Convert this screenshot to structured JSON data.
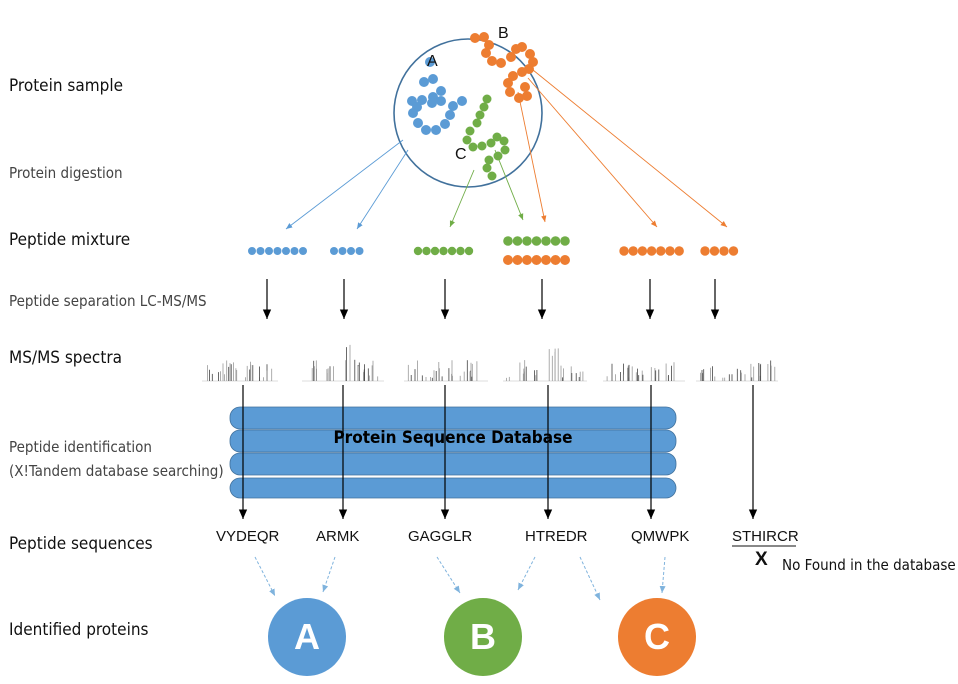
{
  "stage_labels": {
    "protein_sample": "Protein sample",
    "protein_digestion": "Protein digestion",
    "peptide_mixture": "Peptide mixture",
    "peptide_separation": "Peptide separation LC-MS/MS",
    "msms_spectra": "MS/MS spectra",
    "peptide_identification_line1": "Peptide identification",
    "peptide_identification_line2": "(X!Tandem database searching)",
    "peptide_sequences": "Peptide sequences",
    "identified_proteins": "Identified proteins"
  },
  "sample_circle": {
    "protein_labels": [
      "A",
      "B",
      "C"
    ]
  },
  "database": {
    "title": "Protein Sequence Database"
  },
  "peptide_sequences": [
    "VYDEQR",
    "ARMK",
    "GAGGLR",
    "HTREDR",
    "QMWPK",
    "STHIRCR"
  ],
  "not_found": {
    "mark": "X",
    "text": "No Found in the database"
  },
  "identified_proteins": [
    {
      "letter": "A",
      "color": "#5b9bd5"
    },
    {
      "letter": "B",
      "color": "#70ad47"
    },
    {
      "letter": "C",
      "color": "#ed7d31"
    }
  ],
  "colors": {
    "blue": "#5b9bd5",
    "green": "#70ad47",
    "orange": "#ed7d31",
    "circle_border": "#41719c",
    "db_disk": "#5b9bd5"
  }
}
